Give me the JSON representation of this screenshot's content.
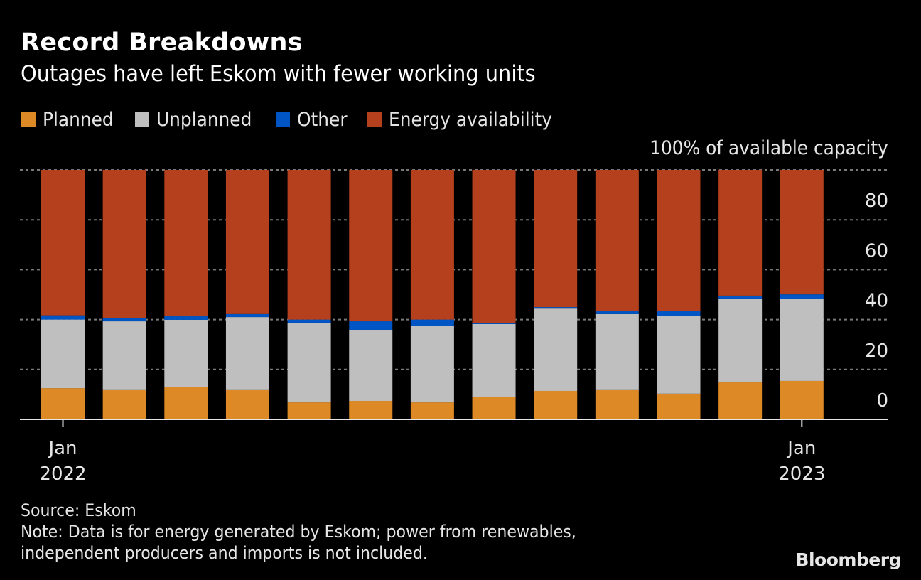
{
  "header": {
    "title": "Record Breakdowns",
    "subtitle": "Outages have left Eskom with fewer working units"
  },
  "legend": [
    {
      "label": "Planned",
      "color": "#dd8a26"
    },
    {
      "label": "Unplanned",
      "color": "#bfbfbf"
    },
    {
      "label": "Other",
      "color": "#0055c4"
    },
    {
      "label": "Energy availability",
      "color": "#b5401d"
    }
  ],
  "unit_label": "100% of available capacity",
  "footer": {
    "source": "Source: Eskom",
    "note_line1": "Note: Data is for energy generated by Eskom; power from renewables,",
    "note_line2": "independent producers and imports is not included."
  },
  "brand": "Bloomberg",
  "chart_data": {
    "type": "bar",
    "stacked": true,
    "title": "Record Breakdowns",
    "subtitle": "Outages have left Eskom with fewer working units",
    "ylabel": "100% of available capacity",
    "xlabel": "",
    "ylim": [
      0,
      100
    ],
    "yticks": [
      0,
      20,
      40,
      60,
      80
    ],
    "grid": true,
    "legend_position": "top-left",
    "categories": [
      "Jan 2022",
      "Feb 2022",
      "Mar 2022",
      "Apr 2022",
      "May 2022",
      "Jun 2022",
      "Jul 2022",
      "Aug 2022",
      "Sep 2022",
      "Oct 2022",
      "Nov 2022",
      "Dec 2022",
      "Jan 2023"
    ],
    "xtick_labels": [
      {
        "index": 0,
        "line1": "Jan",
        "line2": "2022"
      },
      {
        "index": 12,
        "line1": "Jan",
        "line2": "2023"
      }
    ],
    "series": [
      {
        "name": "Planned",
        "color": "#dd8a26",
        "values": [
          12.5,
          12.0,
          13.1,
          12.0,
          6.8,
          7.4,
          6.8,
          9.1,
          11.4,
          12.0,
          10.3,
          14.8,
          15.4
        ]
      },
      {
        "name": "Unplanned",
        "color": "#bfbfbf",
        "values": [
          27.5,
          27.3,
          26.8,
          29.0,
          31.9,
          28.5,
          30.8,
          29.1,
          33.0,
          30.2,
          31.3,
          33.6,
          33.0
        ]
      },
      {
        "name": "Other",
        "color": "#0055c4",
        "values": [
          1.7,
          1.2,
          1.4,
          1.2,
          1.3,
          3.4,
          2.4,
          0.5,
          0.6,
          1.1,
          1.7,
          1.2,
          1.7
        ]
      },
      {
        "name": "Energy availability",
        "color": "#b5401d",
        "values": [
          58.3,
          59.5,
          58.7,
          57.8,
          60.0,
          60.7,
          60.0,
          61.3,
          55.0,
          56.7,
          56.7,
          50.4,
          49.9
        ]
      }
    ]
  }
}
